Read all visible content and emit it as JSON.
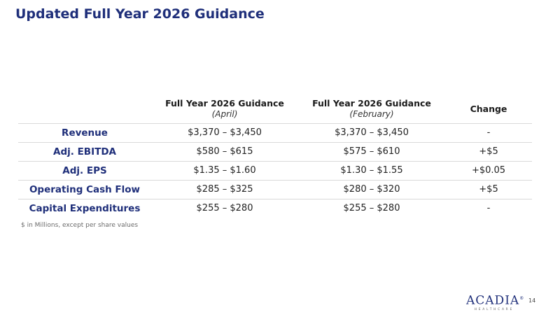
{
  "slide": {
    "title": "Updated Full Year 2026 Guidance",
    "page_number": "14"
  },
  "table": {
    "headers": [
      {
        "main": "",
        "sub": ""
      },
      {
        "main": "Full Year 2026 Guidance",
        "sub": "(April)"
      },
      {
        "main": "Full Year 2026 Guidance",
        "sub": "(February)"
      },
      {
        "main": "Change",
        "sub": ""
      }
    ],
    "rows": [
      {
        "metric": "Revenue",
        "april": "$3,370 – $3,450",
        "february": "$3,370 – $3,450",
        "change": "-"
      },
      {
        "metric": "Adj. EBITDA",
        "april": "$580 – $615",
        "february": "$575 – $610",
        "change": "+$5"
      },
      {
        "metric": "Adj. EPS",
        "april": "$1.35 – $1.60",
        "february": "$1.30 – $1.55",
        "change": "+$0.05"
      },
      {
        "metric": "Operating Cash Flow",
        "april": "$285 – $325",
        "february": "$280 – $320",
        "change": "+$5"
      },
      {
        "metric": "Capital Expenditures",
        "april": "$255 – $280",
        "february": "$255 – $280",
        "change": "-"
      }
    ]
  },
  "footnote": "$ in Millions, except per share values",
  "logo": {
    "name": "ACADIA",
    "mark": "®",
    "tagline": "HEALTHCARE"
  },
  "colors": {
    "brand_navy": "#1f2f7a",
    "divider": "#d9d9d9"
  }
}
